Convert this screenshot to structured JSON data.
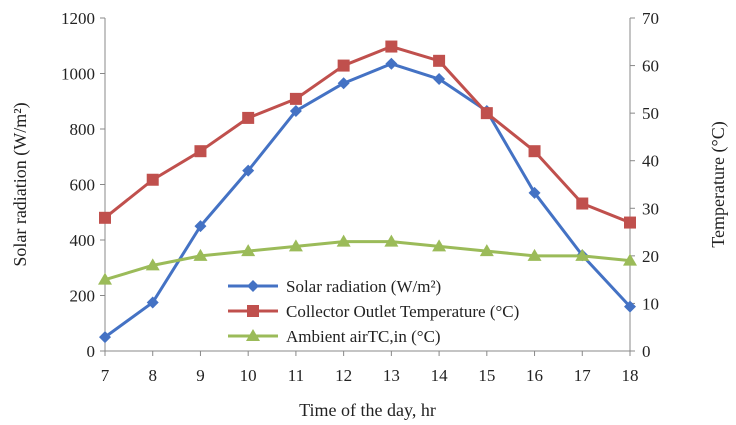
{
  "chart_data": {
    "type": "line",
    "x": [
      7,
      8,
      9,
      10,
      11,
      12,
      13,
      14,
      15,
      16,
      17,
      18
    ],
    "x_tick_labels": [
      "7",
      "8",
      "9",
      "10",
      "11",
      "12",
      "13",
      "14",
      "15",
      "16",
      "17",
      "18"
    ],
    "xlabel": "Time of the day, hr",
    "ylabel_left": "Solar radiation (W/m²)",
    "ylabel_right": "Temperature (°C)",
    "ylim_left": [
      0,
      1200
    ],
    "yticks_left": [
      "0",
      "200",
      "400",
      "600",
      "800",
      "1000",
      "1200"
    ],
    "ylim_right": [
      0,
      70
    ],
    "yticks_right": [
      "0",
      "10",
      "20",
      "30",
      "40",
      "50",
      "60",
      "70"
    ],
    "grid": false,
    "legend_position": "bottom-center",
    "series": [
      {
        "name": "Solar radiation (W/m²)",
        "axis": "left",
        "marker": "diamond",
        "color": "#4472C4",
        "values": [
          50,
          175,
          450,
          650,
          865,
          965,
          1035,
          980,
          865,
          570,
          345,
          160
        ]
      },
      {
        "name": "Collector Outlet Temperature (°C)",
        "axis": "right",
        "marker": "square",
        "color": "#C0504D",
        "values": [
          28,
          36,
          42,
          49,
          53,
          60,
          64,
          61,
          50,
          42,
          31,
          27
        ]
      },
      {
        "name": "Ambient airTC,in (°C)",
        "axis": "right",
        "marker": "triangle",
        "color": "#9BBB59",
        "values": [
          15,
          18,
          20,
          21,
          22,
          23,
          23,
          22,
          21,
          20,
          20,
          19
        ]
      }
    ]
  }
}
